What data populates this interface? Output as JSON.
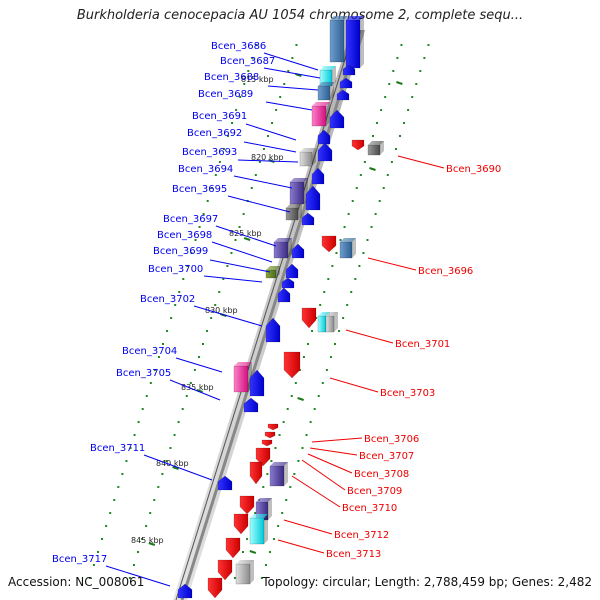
{
  "title": "Burkholderia cenocepacia AU 1054 chromosome 2, complete sequ...",
  "footer": {
    "accession": "Accession: NC_008061",
    "summary": "Topology: circular; Length: 2,788,459 bp; Genes: 2,482"
  },
  "colors": {
    "forward_strand": "#0000ee",
    "reverse_strand": "#ee0000",
    "backbone": "#888888",
    "tick_dots": "#228822",
    "kbp_tick": "#1a7a1a"
  },
  "scale_labels": [
    "815 kbp",
    "820 kbp",
    "825 kbp",
    "830 kbp",
    "835 kbp",
    "840 kbp",
    "845 kbp"
  ],
  "left_labels": [
    "Bcen_3686",
    "Bcen_3687",
    "Bcen_3688",
    "Bcen_3689",
    "Bcen_3691",
    "Bcen_3692",
    "Bcen_3693",
    "Bcen_3694",
    "Bcen_3695",
    "Bcen_3697",
    "Bcen_3698",
    "Bcen_3699",
    "Bcen_3700",
    "Bcen_3702",
    "Bcen_3704",
    "Bcen_3705",
    "Bcen_3711",
    "Bcen_3717"
  ],
  "right_labels": [
    "Bcen_3690",
    "Bcen_3696",
    "Bcen_3701",
    "Bcen_3703",
    "Bcen_3706",
    "Bcen_3707",
    "Bcen_3708",
    "Bcen_3709",
    "Bcen_3710",
    "Bcen_3712",
    "Bcen_3713"
  ]
}
